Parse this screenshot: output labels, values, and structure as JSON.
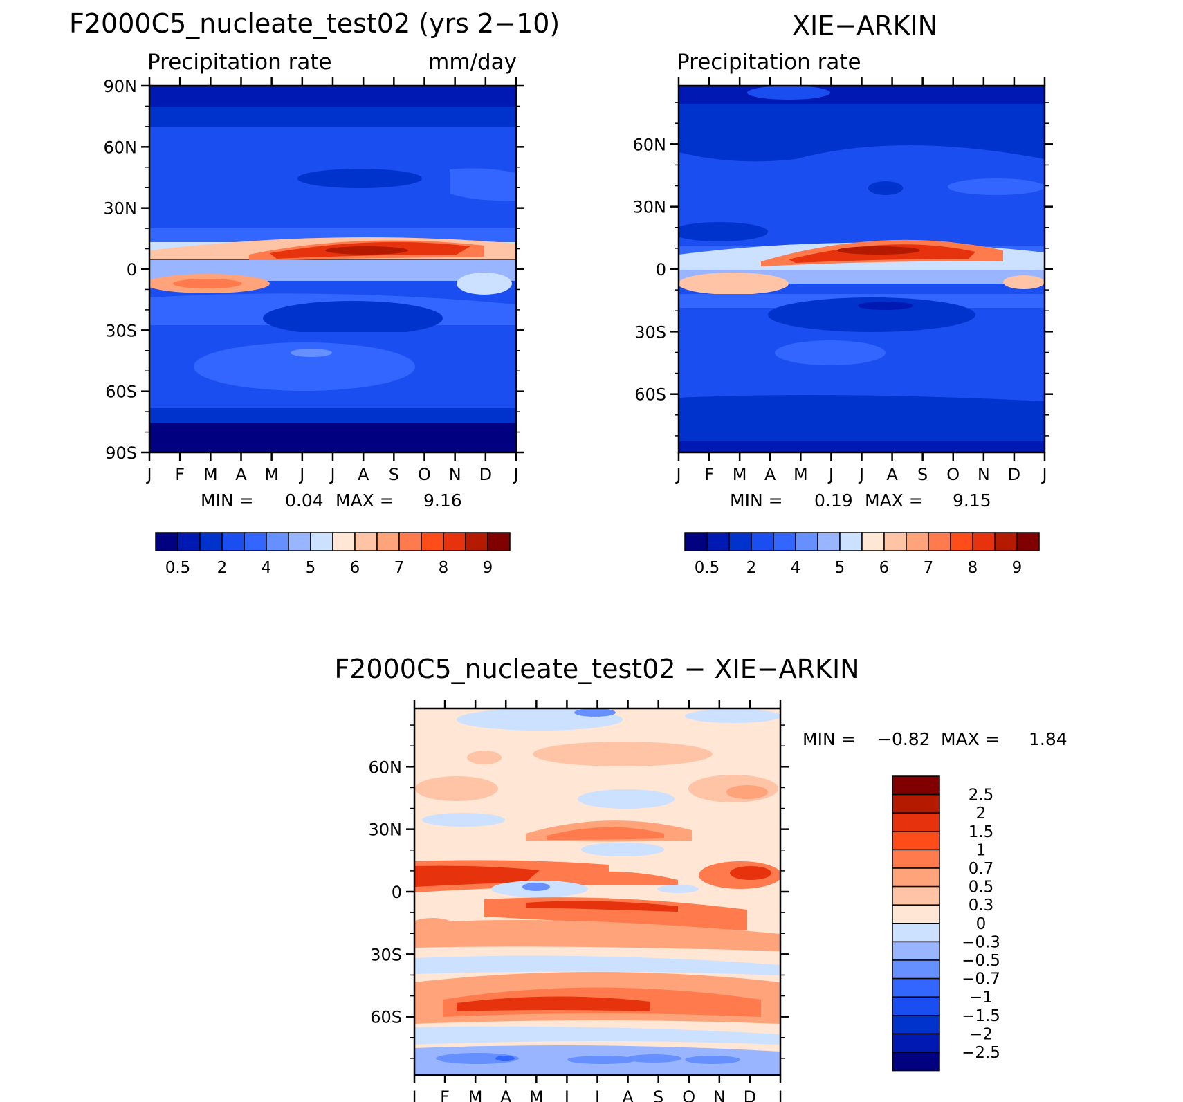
{
  "chart_data": [
    {
      "id": "panel_model",
      "type": "heatmap",
      "title": "F2000C5_nucleate_test02 (yrs 2-10)",
      "title_display": "F2000C5_nucleate_test02 (yrs 2−10)",
      "left_label": "Precipitation rate",
      "right_label": "mm/day",
      "x_ticks": [
        "J",
        "F",
        "M",
        "A",
        "M",
        "J",
        "J",
        "A",
        "S",
        "O",
        "N",
        "D",
        "J"
      ],
      "y_ticks": [
        "90N",
        "60N",
        "30N",
        "0",
        "30S",
        "60S",
        "90S"
      ],
      "y_range": [
        -90,
        90
      ],
      "stats": {
        "min_label": "MIN =",
        "min": "0.04",
        "max_label": "MAX =",
        "max": "9.16"
      },
      "colorbar": {
        "orientation": "horizontal",
        "colors": [
          "#000080",
          "#0019b3",
          "#0033cc",
          "#1a4ef0",
          "#3366ff",
          "#6690ff",
          "#99b5ff",
          "#cce0ff",
          "#ffe6d5",
          "#ffc4a6",
          "#ffa37a",
          "#ff7a4d",
          "#ff4d1a",
          "#e6330d",
          "#b31a00",
          "#800000"
        ],
        "labels": [
          "0.5",
          "2",
          "4",
          "5",
          "6",
          "7",
          "8",
          "9"
        ]
      },
      "field_values_mm_day": {
        "north_pole_band": "0.5-2",
        "northern_midlatitudes": "2-4",
        "itcz_peak": "9",
        "southern_subtropics": "2-4",
        "southern_storm_track": "4",
        "south_pole_band": "0.5"
      }
    },
    {
      "id": "panel_obs",
      "type": "heatmap",
      "title": "XIE-ARKIN",
      "title_display": "XIE−ARKIN",
      "left_label": "Precipitation rate",
      "x_ticks": [
        "J",
        "F",
        "M",
        "A",
        "M",
        "J",
        "J",
        "A",
        "S",
        "O",
        "N",
        "D",
        "J"
      ],
      "y_ticks": [
        "60N",
        "30N",
        "0",
        "30S",
        "60S"
      ],
      "y_range": [
        -88,
        88
      ],
      "stats": {
        "min_label": "MIN =",
        "min": "0.19",
        "max_label": "MAX =",
        "max": "9.15"
      },
      "colorbar": {
        "orientation": "horizontal",
        "colors": [
          "#000080",
          "#0019b3",
          "#0033cc",
          "#1a4ef0",
          "#3366ff",
          "#6690ff",
          "#99b5ff",
          "#cce0ff",
          "#ffe6d5",
          "#ffc4a6",
          "#ffa37a",
          "#ff7a4d",
          "#ff4d1a",
          "#e6330d",
          "#b31a00",
          "#800000"
        ],
        "labels": [
          "0.5",
          "2",
          "4",
          "5",
          "6",
          "7",
          "8",
          "9"
        ]
      },
      "field_values_mm_day": {
        "north_pole_band": "0.5-2",
        "northern_midlatitudes": "2-4",
        "itcz_peak": "9",
        "southern_subtropics": "2-4",
        "south_pole_band": "0.5-2"
      }
    },
    {
      "id": "panel_diff",
      "type": "heatmap",
      "title": "F2000C5_nucleate_test02 - XIE-ARKIN",
      "title_display": "F2000C5_nucleate_test02 − XIE−ARKIN",
      "x_ticks": [
        "J",
        "F",
        "M",
        "A",
        "M",
        "J",
        "J",
        "A",
        "S",
        "O",
        "N",
        "D",
        "J"
      ],
      "y_ticks": [
        "60N",
        "30N",
        "0",
        "30S",
        "60S"
      ],
      "y_range": [
        -88,
        88
      ],
      "stats": {
        "min_label": "MIN =",
        "min": "-0.82",
        "min_display": "−0.82",
        "max_label": "MAX =",
        "max": "1.84"
      },
      "colorbar": {
        "orientation": "vertical",
        "colors_top_to_bottom": [
          "#800000",
          "#b31a00",
          "#e6330d",
          "#ff4d1a",
          "#ff7a4d",
          "#ffa37a",
          "#ffc4a6",
          "#ffe6d5",
          "#cce0ff",
          "#99b5ff",
          "#6690ff",
          "#3366ff",
          "#1a4ef0",
          "#0033cc",
          "#0019b3",
          "#000080"
        ],
        "labels_top_to_bottom": [
          "2.5",
          "2",
          "1.5",
          "1",
          "0.7",
          "0.5",
          "0.3",
          "0",
          "−0.3",
          "−0.5",
          "−0.7",
          "−1",
          "−1.5",
          "−2",
          "−2.5"
        ]
      },
      "field_values_mm_day": {
        "background": "0-0.3",
        "north_tropics_band": "1-1.5",
        "south_tropics_band": "1-1.5",
        "southern_storm_track": "1-1.5",
        "equatorial_minimum": "-1",
        "south_pole_band": "-0.3 to -0.7"
      }
    }
  ]
}
